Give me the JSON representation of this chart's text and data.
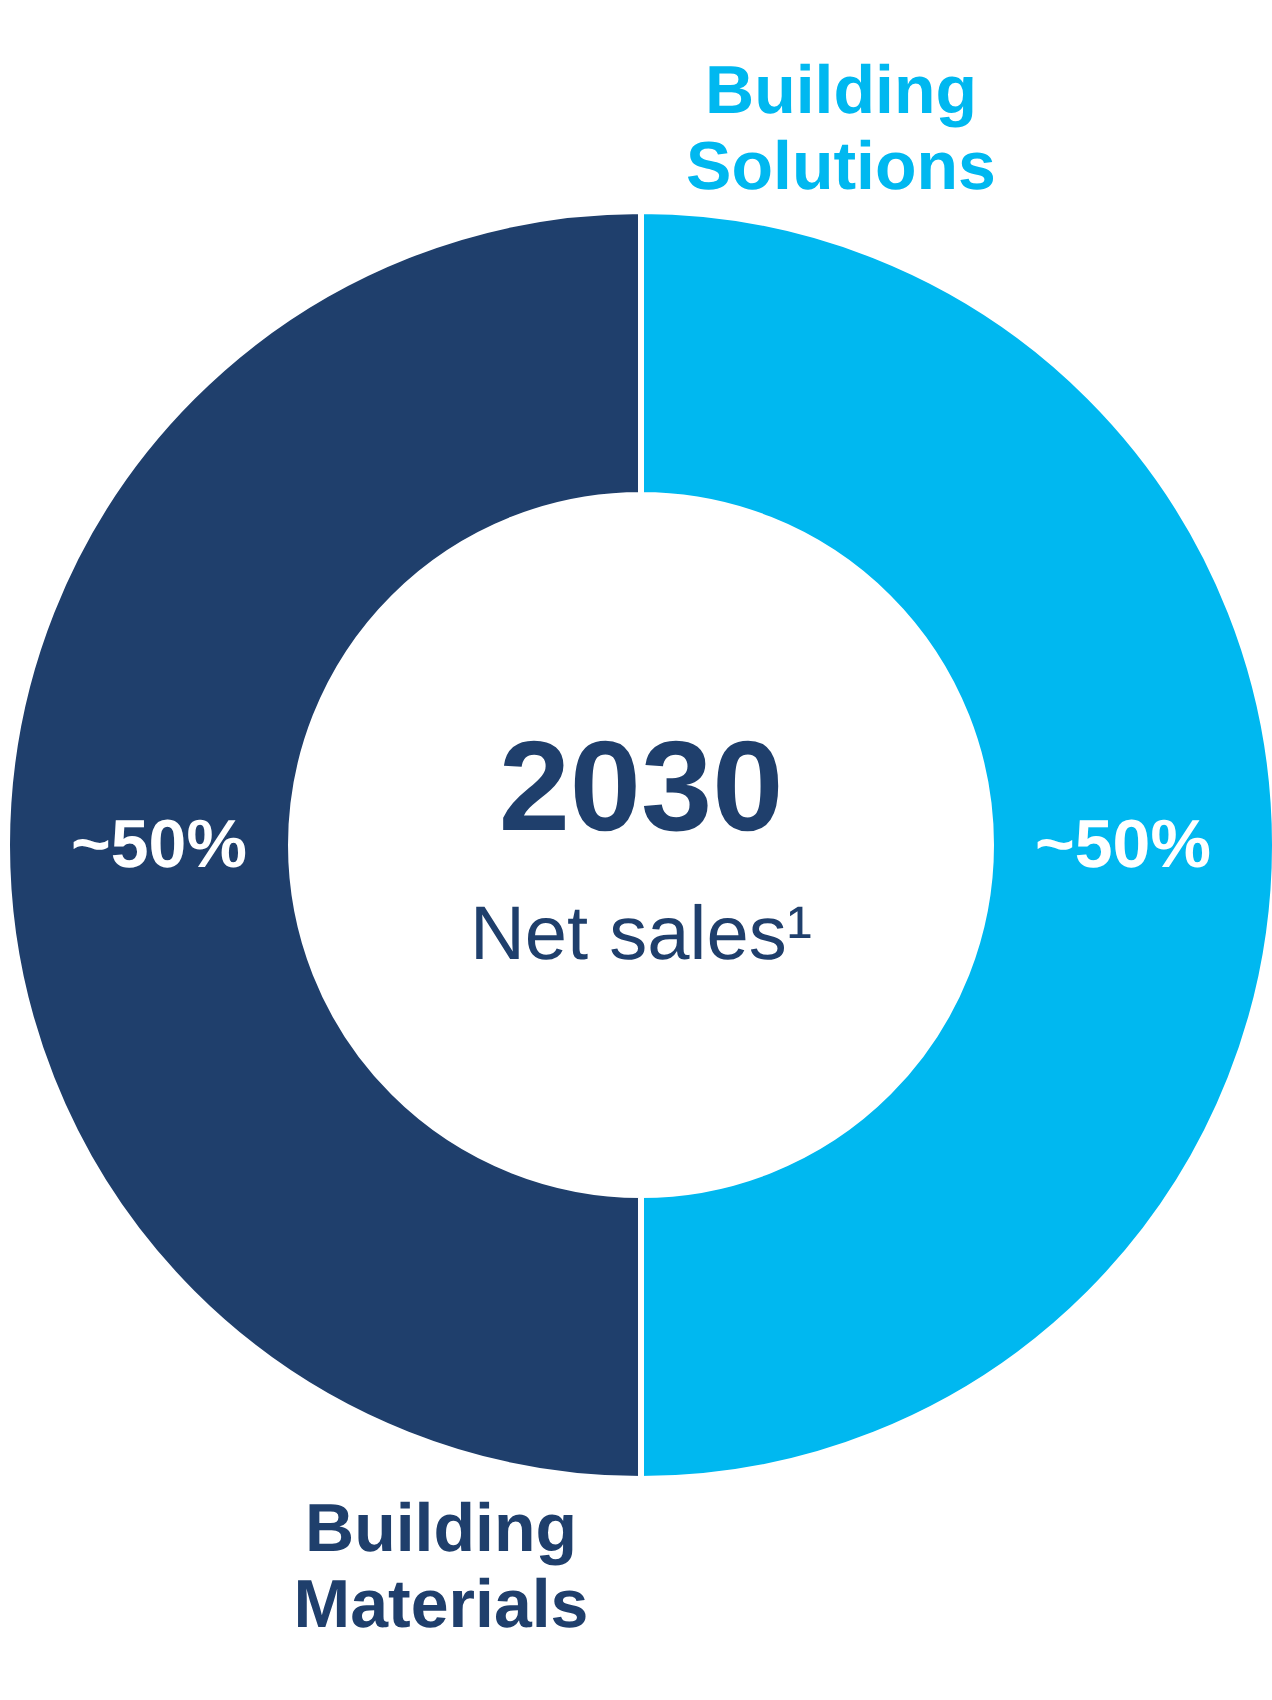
{
  "chart_data": {
    "type": "donut",
    "title": "2030",
    "subtitle": "Net sales¹",
    "categories": [
      "Building Solutions",
      "Building Materials"
    ],
    "values": [
      50,
      50
    ],
    "colors": [
      "#00b8f0",
      "#1f3f6c"
    ],
    "value_labels": [
      "~50%",
      "~50%"
    ]
  }
}
